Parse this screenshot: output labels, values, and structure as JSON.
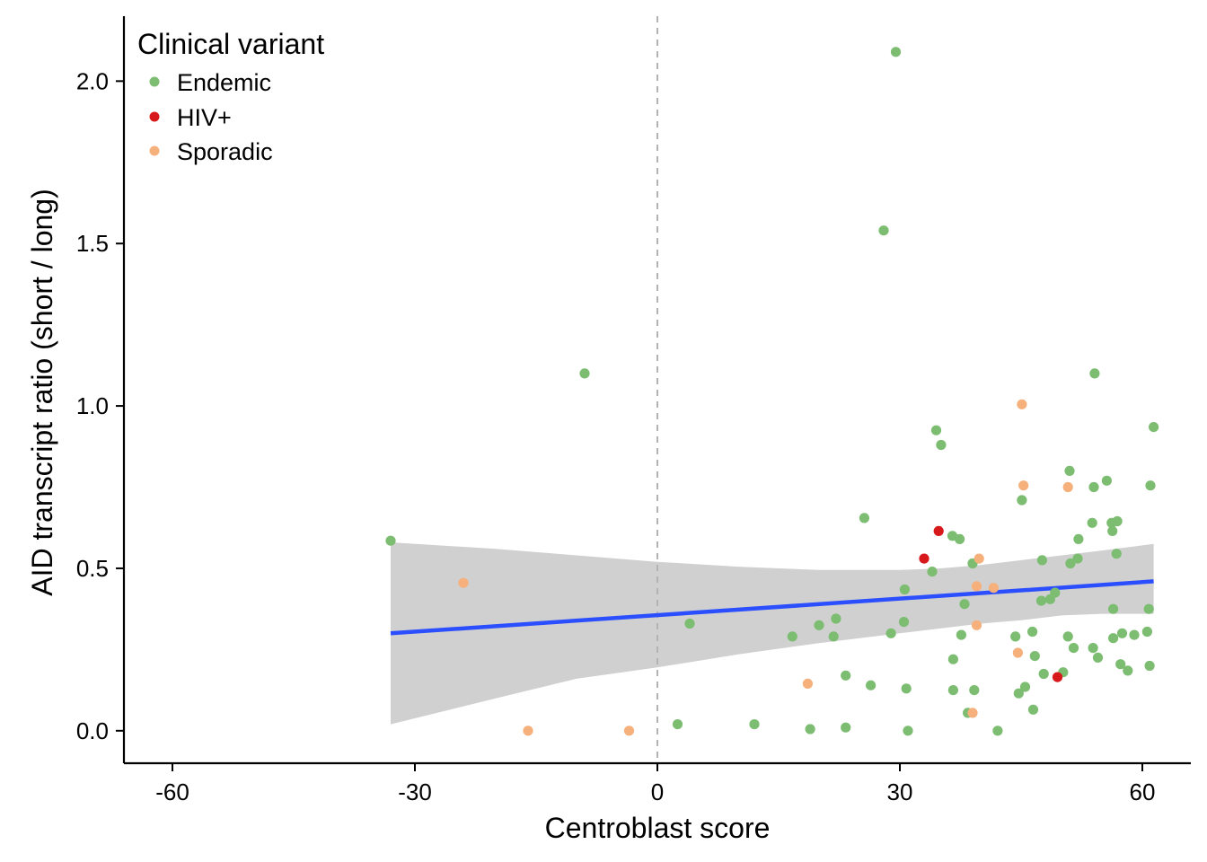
{
  "chart_data": {
    "type": "scatter",
    "title": "",
    "xlabel": "Centroblast score",
    "ylabel": "AID transcript ratio (short / long)",
    "xlim": [
      -66,
      66
    ],
    "ylim": [
      -0.1,
      2.2
    ],
    "x_ticks": [
      -60,
      -30,
      0,
      30,
      60
    ],
    "y_ticks": [
      0.0,
      0.5,
      1.0,
      1.5,
      2.0
    ],
    "x_tick_labels": [
      "-60",
      "-30",
      "0",
      "30",
      "60"
    ],
    "y_tick_labels": [
      "0.0",
      "0.5",
      "1.0",
      "1.5",
      "2.0"
    ],
    "grid": false,
    "reference_line": {
      "axis": "x",
      "value": 0,
      "style": "dashed",
      "color": "#b3b3b3"
    },
    "legend": {
      "title": "Clinical variant",
      "placement": "top-left",
      "entries": [
        {
          "label": "Endemic",
          "color": "#7cbd72"
        },
        {
          "label": "HIV+",
          "color": "#d7191c"
        },
        {
          "label": "Sporadic",
          "color": "#f6b07c"
        }
      ]
    },
    "series": [
      {
        "name": "Endemic",
        "color": "#7cbd72",
        "points": [
          [
            -33.0,
            0.585
          ],
          [
            -9.0,
            1.1
          ],
          [
            4.0,
            0.33
          ],
          [
            2.5,
            0.02
          ],
          [
            12.0,
            0.02
          ],
          [
            16.7,
            0.29
          ],
          [
            18.9,
            0.005
          ],
          [
            20.0,
            0.325
          ],
          [
            21.8,
            0.29
          ],
          [
            22.1,
            0.345
          ],
          [
            23.3,
            0.17
          ],
          [
            23.3,
            0.01
          ],
          [
            25.6,
            0.655
          ],
          [
            26.4,
            0.14
          ],
          [
            28.0,
            1.54
          ],
          [
            29.5,
            2.09
          ],
          [
            28.9,
            0.3
          ],
          [
            30.5,
            0.335
          ],
          [
            30.6,
            0.435
          ],
          [
            30.8,
            0.13
          ],
          [
            31.0,
            0.0
          ],
          [
            34.0,
            0.49
          ],
          [
            34.5,
            0.925
          ],
          [
            35.1,
            0.88
          ],
          [
            36.5,
            0.6
          ],
          [
            36.6,
            0.22
          ],
          [
            36.6,
            0.125
          ],
          [
            37.4,
            0.59
          ],
          [
            37.6,
            0.295
          ],
          [
            38.0,
            0.39
          ],
          [
            38.4,
            0.055
          ],
          [
            39.2,
            0.125
          ],
          [
            39.0,
            0.515
          ],
          [
            42.1,
            0.0
          ],
          [
            44.3,
            0.29
          ],
          [
            44.7,
            0.115
          ],
          [
            45.1,
            0.71
          ],
          [
            45.5,
            0.135
          ],
          [
            46.4,
            0.305
          ],
          [
            46.5,
            0.065
          ],
          [
            46.7,
            0.23
          ],
          [
            47.5,
            0.4
          ],
          [
            47.6,
            0.525
          ],
          [
            47.8,
            0.175
          ],
          [
            48.6,
            0.405
          ],
          [
            49.2,
            0.425
          ],
          [
            50.2,
            0.18
          ],
          [
            50.8,
            0.29
          ],
          [
            51.0,
            0.8
          ],
          [
            51.1,
            0.515
          ],
          [
            51.5,
            0.255
          ],
          [
            52.0,
            0.53
          ],
          [
            52.1,
            0.59
          ],
          [
            53.8,
            0.64
          ],
          [
            53.9,
            0.255
          ],
          [
            54.0,
            0.75
          ],
          [
            54.1,
            1.1
          ],
          [
            54.5,
            0.225
          ],
          [
            55.6,
            0.77
          ],
          [
            56.2,
            0.64
          ],
          [
            56.3,
            0.615
          ],
          [
            56.4,
            0.375
          ],
          [
            56.4,
            0.285
          ],
          [
            56.8,
            0.545
          ],
          [
            56.9,
            0.645
          ],
          [
            57.3,
            0.205
          ],
          [
            57.5,
            0.3
          ],
          [
            58.2,
            0.185
          ],
          [
            59.0,
            0.295
          ],
          [
            60.6,
            0.305
          ],
          [
            60.8,
            0.375
          ],
          [
            60.9,
            0.2
          ],
          [
            61.0,
            0.755
          ],
          [
            61.4,
            0.935
          ]
        ]
      },
      {
        "name": "HIV+",
        "color": "#d7191c",
        "points": [
          [
            33.0,
            0.53
          ],
          [
            34.8,
            0.615
          ],
          [
            49.5,
            0.165
          ]
        ]
      },
      {
        "name": "Sporadic",
        "color": "#f6b07c",
        "points": [
          [
            -24.0,
            0.455
          ],
          [
            -16.0,
            0.0
          ],
          [
            -3.5,
            0.0
          ],
          [
            18.6,
            0.145
          ],
          [
            39.0,
            0.055
          ],
          [
            39.5,
            0.325
          ],
          [
            39.5,
            0.445
          ],
          [
            39.8,
            0.53
          ],
          [
            41.6,
            0.44
          ],
          [
            44.6,
            0.24
          ],
          [
            45.1,
            1.005
          ],
          [
            45.3,
            0.755
          ],
          [
            50.8,
            0.75
          ]
        ]
      }
    ],
    "trend_line": {
      "method": "linear",
      "color": "#2b4fff",
      "x_range": [
        -33.0,
        61.4
      ],
      "y_start": 0.3,
      "y_end": 0.46,
      "confidence_band": {
        "color": "#d0d0d0",
        "x": [
          -33.0,
          -20.0,
          -10.0,
          0.0,
          10.0,
          20.0,
          30.0,
          35.0,
          40.0,
          45.0,
          50.0,
          55.0,
          61.4
        ],
        "lower": [
          0.02,
          0.1,
          0.16,
          0.195,
          0.235,
          0.27,
          0.3,
          0.315,
          0.33,
          0.34,
          0.355,
          0.36,
          0.36
        ],
        "upper": [
          0.58,
          0.56,
          0.54,
          0.52,
          0.505,
          0.495,
          0.495,
          0.5,
          0.51,
          0.525,
          0.54,
          0.555,
          0.575
        ]
      }
    }
  }
}
